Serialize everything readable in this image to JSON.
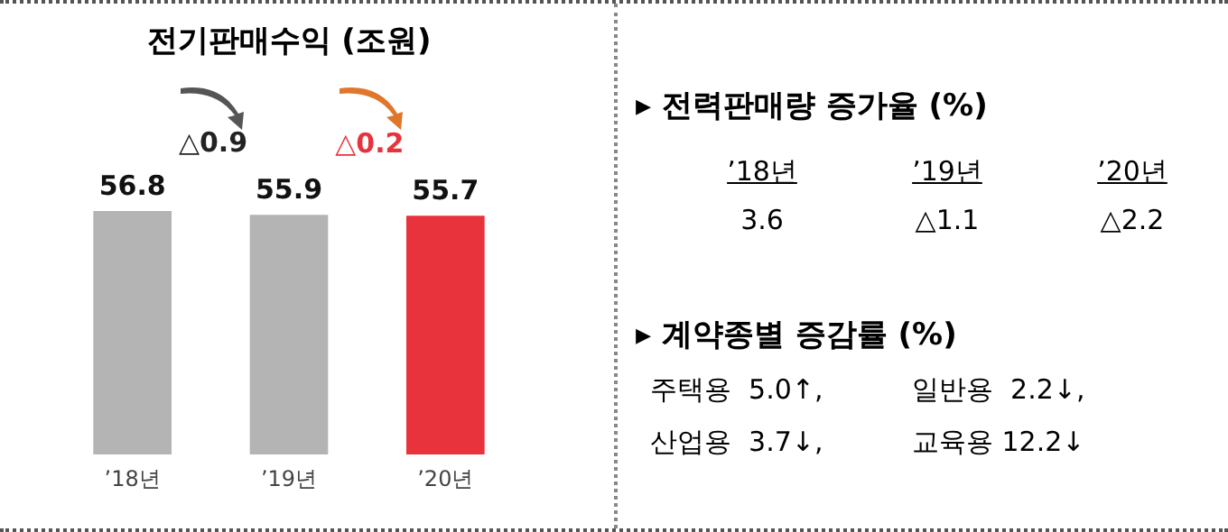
{
  "chart_data": [
    {
      "type": "bar",
      "title": "전기판매수익 (조원)",
      "categories": [
        "’18년",
        "’19년",
        "’20년"
      ],
      "values": [
        56.8,
        55.9,
        55.7
      ],
      "colors": [
        "#b4b4b4",
        "#b4b4b4",
        "#e8323c"
      ],
      "data_labels": true,
      "annotations": [
        "△0.9",
        "△0.2"
      ]
    },
    {
      "type": "other",
      "title": "▸ 전력판매량 증가율 (%)",
      "categories": [
        "’18년",
        "’19년",
        "’20년"
      ],
      "value_labels": [
        "3.6",
        "△1.1",
        "△2.2"
      ]
    },
    {
      "type": "other",
      "title": "▸ 계약종별 증감률 (%)",
      "annotations": [
        "주택용  5.0↑,",
        "일반용  2.2↓,",
        "산업용  3.7↓,",
        "교육용 12.2↓"
      ]
    }
  ]
}
